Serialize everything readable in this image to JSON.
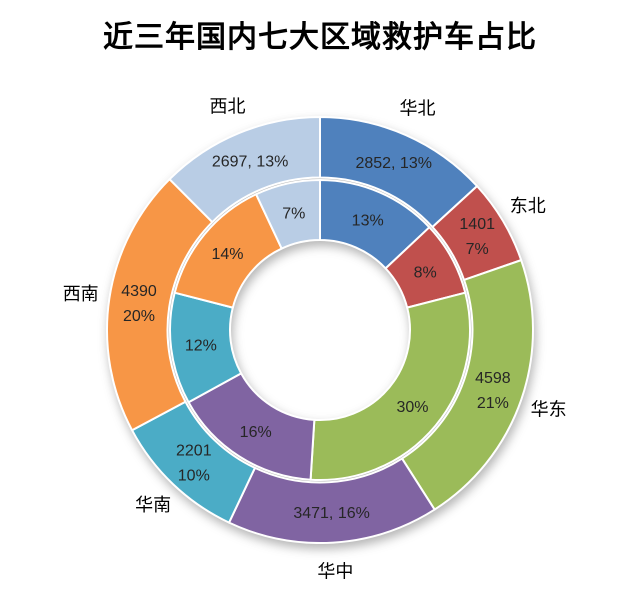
{
  "title": "近三年国内七大区域救护车占比",
  "chart_data": {
    "type": "doughnut",
    "title": "近三年国内七大区域救护车占比",
    "direction": "clockwise",
    "start_angle_deg": 0,
    "legend": "none",
    "background": "#ffffff",
    "categories": [
      "华北",
      "东北",
      "华东",
      "华中",
      "华南",
      "西南",
      "西北"
    ],
    "colors": [
      "#4f81bd",
      "#c0504d",
      "#9bbb59",
      "#8064a2",
      "#4bacc6",
      "#f79646",
      "#b9cde5"
    ],
    "series": [
      {
        "ring": "inner",
        "values_pct": [
          13,
          8,
          30,
          16,
          12,
          14,
          7
        ],
        "labels": [
          "13%",
          "8%",
          "30%",
          "16%",
          "12%",
          "14%",
          "7%"
        ]
      },
      {
        "ring": "outer",
        "values": [
          2852,
          1401,
          4598,
          3471,
          2201,
          4390,
          2697
        ],
        "values_pct": [
          13,
          7,
          21,
          16,
          10,
          20,
          13
        ],
        "labels": [
          "2852, 13%",
          "1401\n7%",
          "4598\n21%",
          "3471, 16%",
          "2201\n10%",
          "4390\n20%",
          "2697, 13%"
        ]
      }
    ],
    "data_label_color": "#262626",
    "category_label_color": "#000000",
    "separator_color": "#ffffff"
  }
}
